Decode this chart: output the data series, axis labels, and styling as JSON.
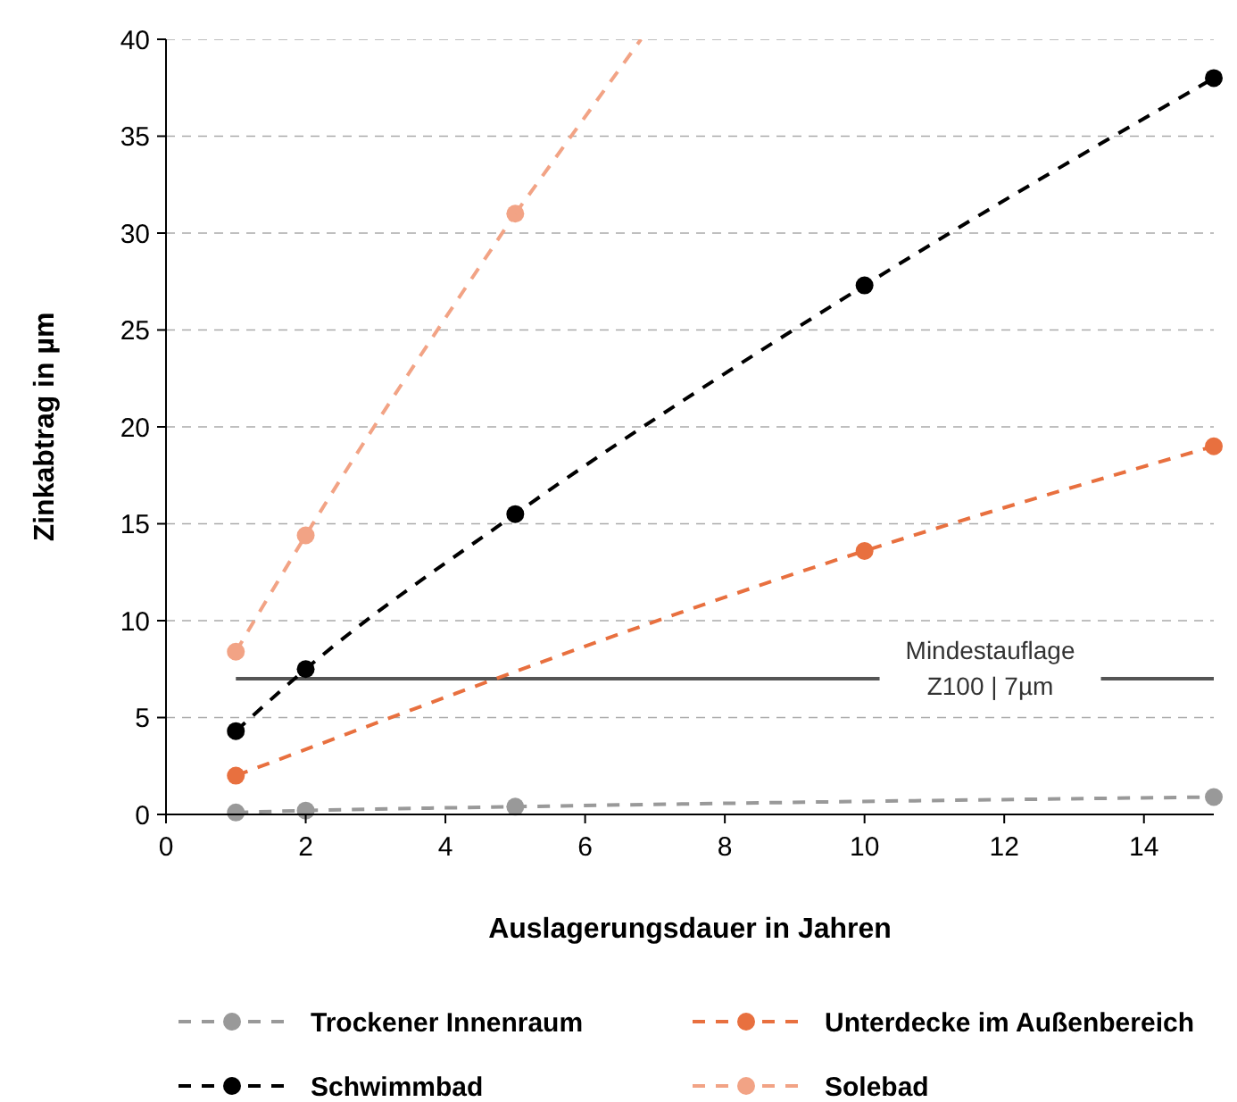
{
  "chart_data": {
    "type": "line",
    "xlabel": "Auslagerungsdauer in Jahren",
    "ylabel": "Zinkabtrag in µm",
    "xlim": [
      0,
      15
    ],
    "xticks": [
      0,
      2,
      4,
      6,
      8,
      10,
      12,
      14
    ],
    "ylim": [
      0,
      40
    ],
    "yticks": [
      0,
      5,
      10,
      15,
      20,
      25,
      30,
      35,
      40
    ],
    "grid": "y",
    "legend": "bottom",
    "marker": "circle",
    "line_style": "dashed",
    "series": [
      {
        "name": "Trockener Innenraum",
        "color": "#999999",
        "x": [
          1,
          2,
          5,
          15
        ],
        "values": [
          0.1,
          0.2,
          0.4,
          0.9
        ]
      },
      {
        "name": "Unterdecke im Außenbereich",
        "color": "#e8703f",
        "x": [
          1,
          10,
          15
        ],
        "values": [
          2,
          13.6,
          19
        ]
      },
      {
        "name": "Schwimmbad",
        "color": "#000000",
        "x": [
          1,
          2,
          5,
          10,
          15
        ],
        "values": [
          4.3,
          7.5,
          15.5,
          27.3,
          38
        ]
      },
      {
        "name": "Solebad",
        "color": "#f2a385",
        "x": [
          1,
          2,
          5
        ],
        "values": [
          8.4,
          14.4,
          31
        ]
      },
      {
        "type": "line",
        "color": "#f2a385",
        "marker": "none",
        "x": [
          5,
          6.8
        ],
        "values": [
          31,
          40
        ]
      }
    ],
    "ref_lines": [
      {
        "axis": "y",
        "value": 7,
        "label": "Mindestauflage\nZ100 | 7µm",
        "color": "#555555",
        "line_style": "solid"
      }
    ]
  }
}
